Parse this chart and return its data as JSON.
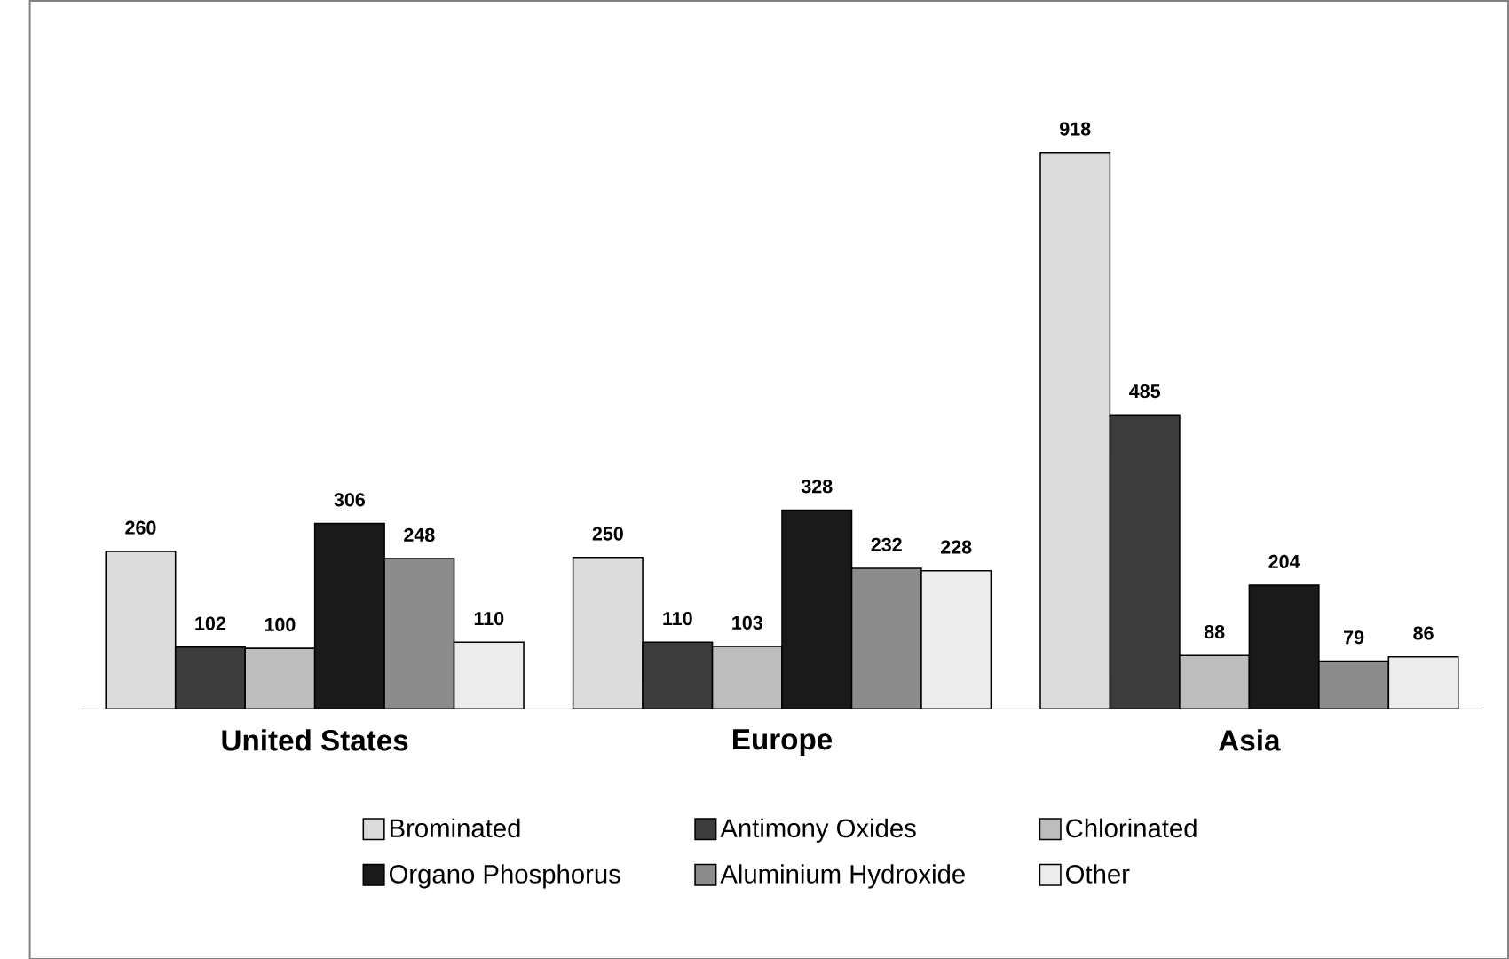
{
  "chart_data": {
    "type": "bar",
    "categories": [
      "United States",
      "Europe",
      "Asia"
    ],
    "series": [
      {
        "name": "Brominated",
        "color": "#dcdcdc",
        "values": [
          260,
          250,
          918
        ]
      },
      {
        "name": "Antimony Oxides",
        "color": "#3c3c3c",
        "values": [
          102,
          110,
          485
        ]
      },
      {
        "name": "Chlorinated",
        "color": "#bdbdbd",
        "values": [
          100,
          103,
          88
        ]
      },
      {
        "name": "Organo Phosphorus",
        "color": "#1a1a1a",
        "values": [
          306,
          328,
          204
        ]
      },
      {
        "name": "Aluminium Hydroxide",
        "color": "#8c8c8c",
        "values": [
          248,
          232,
          79
        ]
      },
      {
        "name": "Other",
        "color": "#ececec",
        "values": [
          110,
          228,
          86
        ]
      }
    ],
    "data_labels": true,
    "legend": "bottom"
  }
}
